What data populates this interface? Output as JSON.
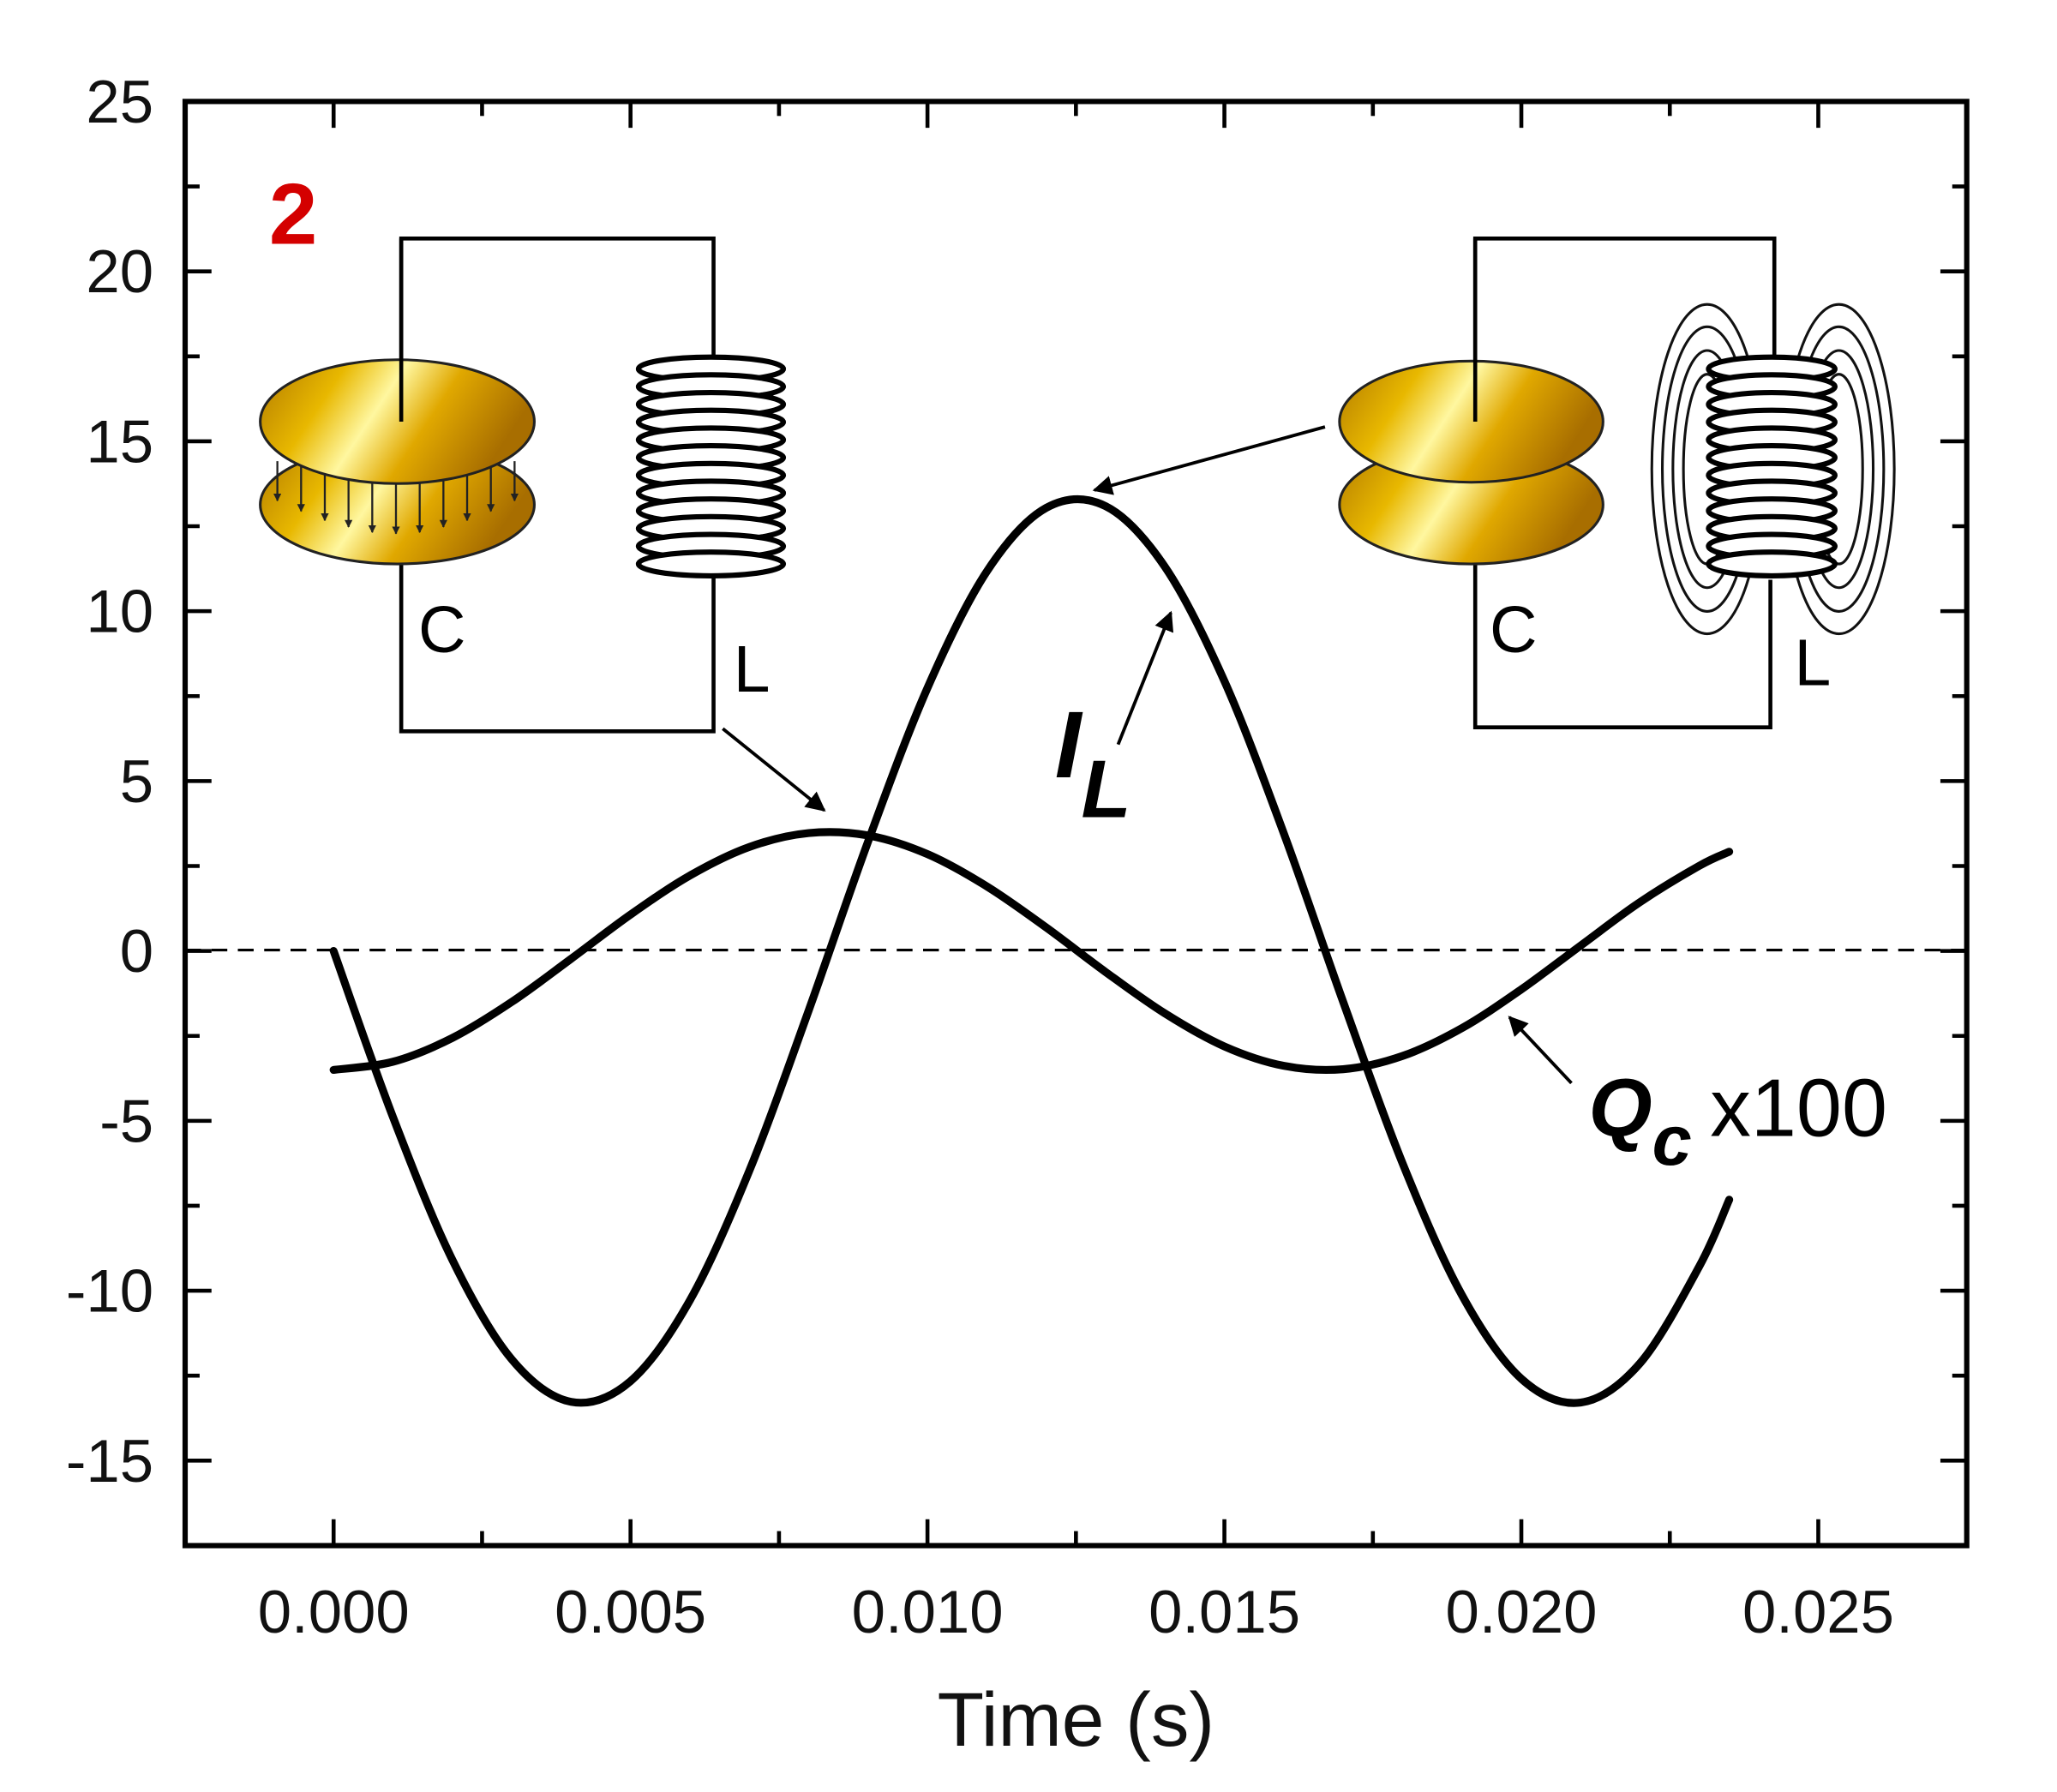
{
  "chart_data": {
    "type": "line",
    "title": "",
    "panel_label": "2",
    "xlabel": "Time (s)",
    "ylabel": "",
    "xlim": [
      -0.0025,
      0.0275
    ],
    "ylim": [
      -17.5,
      25
    ],
    "xticks": [
      "0.000",
      "0.005",
      "0.010",
      "0.015",
      "0.020",
      "0.025"
    ],
    "xtick_values": [
      0,
      0.005,
      0.01,
      0.015,
      0.02,
      0.025
    ],
    "yticks": [
      "-15",
      "-10",
      "-5",
      "0",
      "5",
      "10",
      "15",
      "20",
      "25"
    ],
    "ytick_values": [
      -15,
      -10,
      -5,
      0,
      5,
      10,
      15,
      20,
      25
    ],
    "grid": false,
    "zero_line": "dashed",
    "x": [
      0,
      0.001,
      0.002,
      0.003,
      0.004,
      0.005,
      0.006,
      0.007,
      0.008,
      0.009,
      0.01,
      0.011,
      0.012,
      0.013,
      0.014,
      0.015,
      0.016,
      0.017,
      0.018,
      0.019,
      0.02,
      0.021,
      0.022,
      0.023,
      0.0235
    ],
    "series": [
      {
        "name": "I_L",
        "label_main": "I",
        "label_sub": "L",
        "values": [
          0,
          -4.89,
          -9.09,
          -12.02,
          -13.27,
          -12.66,
          -10.28,
          -6.47,
          -1.75,
          3.22,
          7.74,
          11.17,
          13.04,
          13.09,
          11.3,
          7.94,
          3.46,
          -1.5,
          -6.25,
          -10.13,
          -12.59,
          -13.29,
          -12.13,
          -9.27,
          -7.32
        ]
      },
      {
        "name": "Q_c x100",
        "label_main": "Q",
        "label_sub": "c",
        "label_suffix": "x100",
        "values": [
          -3.5,
          -3.26,
          -2.56,
          -1.5,
          -0.23,
          1.07,
          2.22,
          3.06,
          3.47,
          3.4,
          2.85,
          1.9,
          0.69,
          -0.62,
          -1.84,
          -2.81,
          -3.38,
          -3.48,
          -3.09,
          -2.27,
          -1.13,
          0.16,
          1.44,
          2.51,
          2.92
        ]
      }
    ],
    "insets": [
      {
        "name": "charged-capacitor-circuit",
        "capacitor_label": "C",
        "inductor_label": "L"
      },
      {
        "name": "energized-inductor-circuit",
        "capacitor_label": "C",
        "inductor_label": "L"
      }
    ]
  },
  "colors": {
    "line": "#000000",
    "panel_label": "#d40000",
    "gold_light": "#fff59a",
    "gold_dark": "#c98a00"
  }
}
